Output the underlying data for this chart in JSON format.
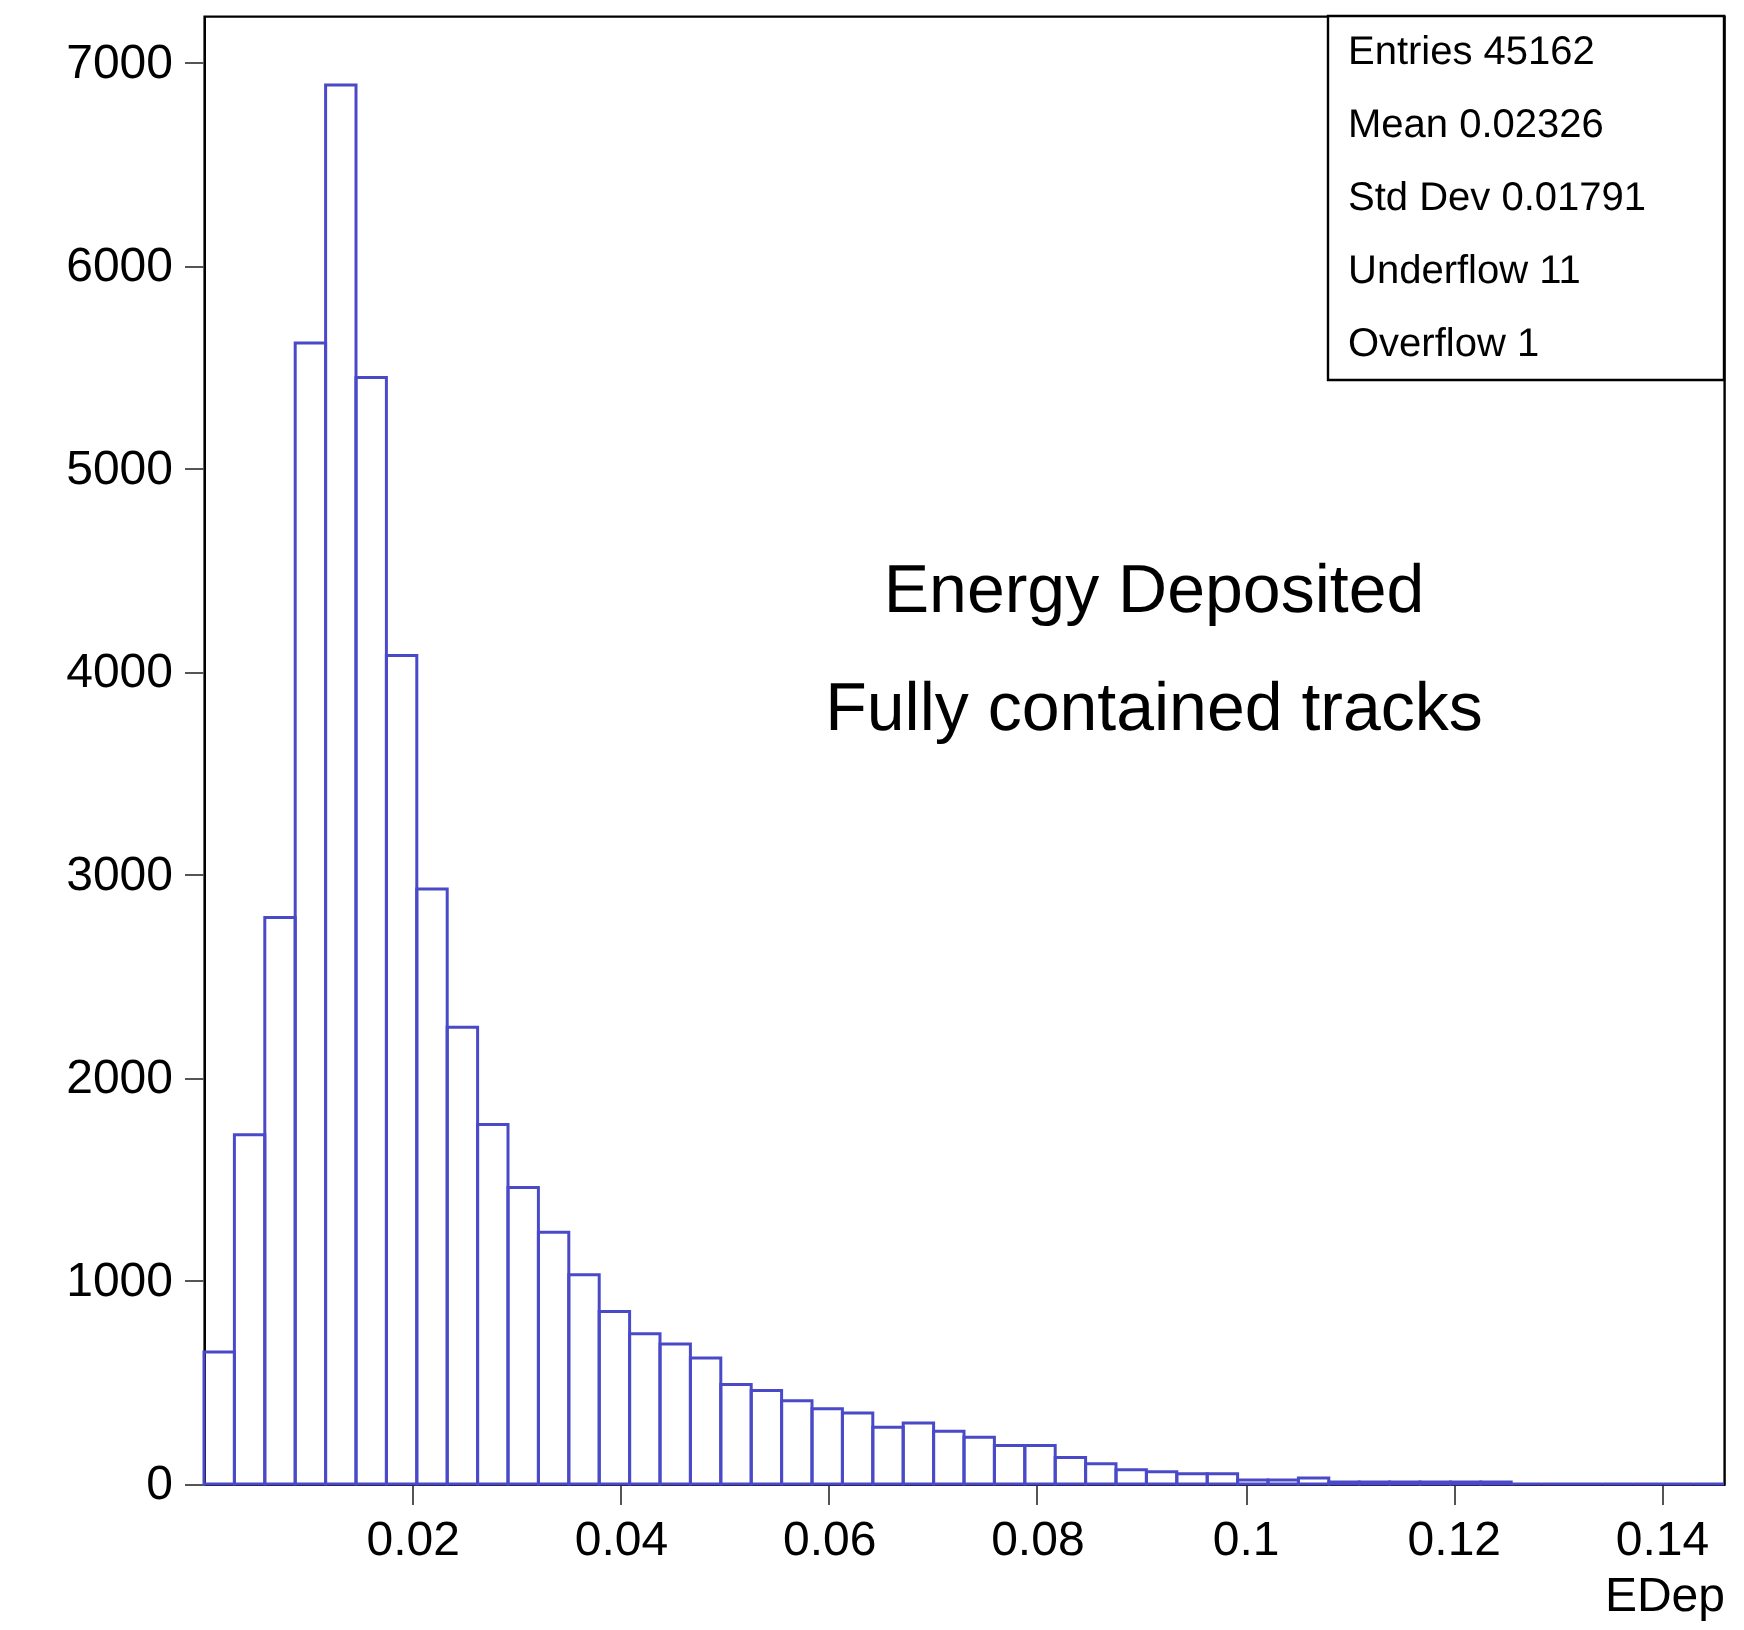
{
  "chart_data": {
    "type": "histogram",
    "xlabel": "EDep",
    "bins": [
      0,
      0.00292,
      0.00584,
      0.00876,
      0.01168,
      0.0146,
      0.01752,
      0.02044,
      0.02336,
      0.02628,
      0.0292,
      0.03212,
      0.03504,
      0.03796,
      0.04088,
      0.0438,
      0.04672,
      0.04964,
      0.05256,
      0.05548,
      0.0584,
      0.06132,
      0.06424,
      0.06716,
      0.07008,
      0.073,
      0.07592,
      0.07884,
      0.08176,
      0.08468,
      0.0876,
      0.09052,
      0.09344,
      0.09636,
      0.09928,
      0.1022,
      0.10512,
      0.10804,
      0.11096,
      0.11388,
      0.1168,
      0.11972,
      0.12264,
      0.12556,
      0.12848,
      0.1314,
      0.13432,
      0.13724,
      0.14016,
      0.14308,
      0.146
    ],
    "values": [
      650,
      1720,
      2790,
      5620,
      6890,
      5450,
      4080,
      2930,
      2250,
      1770,
      1460,
      1240,
      1030,
      850,
      740,
      690,
      620,
      490,
      460,
      410,
      370,
      350,
      280,
      300,
      260,
      230,
      190,
      190,
      130,
      100,
      70,
      60,
      50,
      50,
      20,
      20,
      30,
      10,
      10,
      10,
      10,
      10,
      10,
      0,
      0,
      0,
      0,
      0,
      0,
      0
    ],
    "color": "#4a4ac8",
    "xlim": [
      0,
      0.146
    ],
    "ylim": [
      0,
      7230
    ],
    "xticks": [
      0.02,
      0.04,
      0.06,
      0.08,
      0.1,
      0.12,
      0.14
    ],
    "yticks": [
      0,
      1000,
      2000,
      3000,
      4000,
      5000,
      6000,
      7000
    ],
    "grid": false,
    "annotations": [
      "Energy Deposited",
      "Fully contained tracks",
      "Entries 45162",
      "Mean 0.02326",
      "Std Dev 0.01791",
      "Underflow 11",
      "Overflow 1"
    ]
  }
}
